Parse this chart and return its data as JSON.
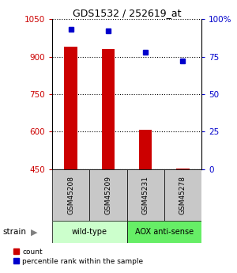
{
  "title": "GDS1532 / 252619_at",
  "samples": [
    "GSM45208",
    "GSM45209",
    "GSM45231",
    "GSM45278"
  ],
  "bar_color": "#cc0000",
  "dot_color": "#0000cc",
  "count_values": [
    940,
    930,
    607,
    453
  ],
  "percentile_values": [
    93,
    92,
    78,
    72
  ],
  "ylim_left": [
    450,
    1050
  ],
  "ylim_right": [
    0,
    100
  ],
  "yticks_left": [
    450,
    600,
    750,
    900,
    1050
  ],
  "yticks_right": [
    0,
    25,
    50,
    75,
    100
  ],
  "ytick_labels_right": [
    "0",
    "25",
    "50",
    "75",
    "100%"
  ],
  "left_axis_color": "#cc0000",
  "right_axis_color": "#0000cc",
  "bar_width": 0.35,
  "group_label": "strain",
  "sample_box_color": "#c8c8c8",
  "group1_color": "#ccffcc",
  "group2_color": "#66ee66",
  "groups_info": [
    {
      "label": "wild-type",
      "start": 0,
      "end": 2
    },
    {
      "label": "AOX anti-sense",
      "start": 2,
      "end": 4
    }
  ]
}
